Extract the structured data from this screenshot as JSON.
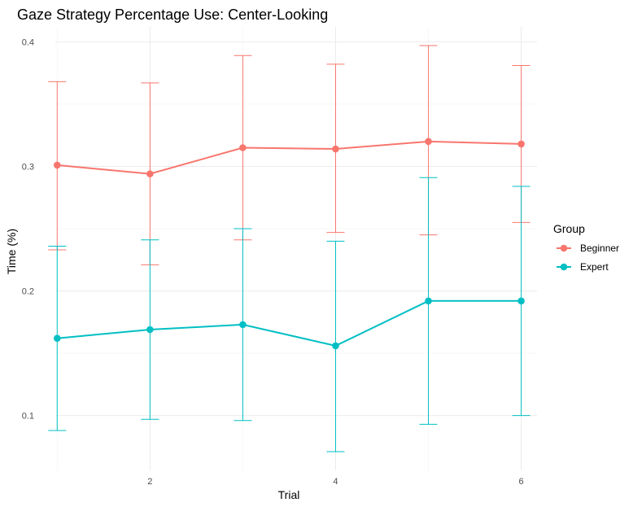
{
  "chart_data": {
    "type": "line",
    "title": "Gaze Strategy Percentage Use: Center-Looking",
    "xlabel": "Trial",
    "ylabel": "Time (%)",
    "x": [
      1,
      2,
      3,
      4,
      5,
      6
    ],
    "xlim": [
      0.98,
      6.17
    ],
    "ylim": [
      0.056,
      0.412
    ],
    "x_ticks": [
      2,
      4,
      6
    ],
    "x_tick_labels": [
      "2",
      "4",
      "6"
    ],
    "y_ticks": [
      0.1,
      0.2,
      0.3,
      0.4
    ],
    "y_tick_labels": [
      "0.1",
      "0.2",
      "0.3",
      "0.4"
    ],
    "grid": true,
    "legend": {
      "title": "Group",
      "position": "right"
    },
    "series": [
      {
        "name": "Beginner",
        "color": "#F8766D",
        "values": [
          0.301,
          0.294,
          0.315,
          0.314,
          0.32,
          0.318
        ],
        "error_low": [
          0.233,
          0.221,
          0.241,
          0.247,
          0.245,
          0.255
        ],
        "error_high": [
          0.368,
          0.367,
          0.389,
          0.382,
          0.397,
          0.381
        ]
      },
      {
        "name": "Expert",
        "color": "#00BFC4",
        "values": [
          0.162,
          0.169,
          0.173,
          0.156,
          0.192,
          0.192
        ],
        "error_low": [
          0.088,
          0.097,
          0.096,
          0.071,
          0.093,
          0.1
        ],
        "error_high": [
          0.236,
          0.241,
          0.25,
          0.24,
          0.291,
          0.284
        ]
      }
    ]
  }
}
